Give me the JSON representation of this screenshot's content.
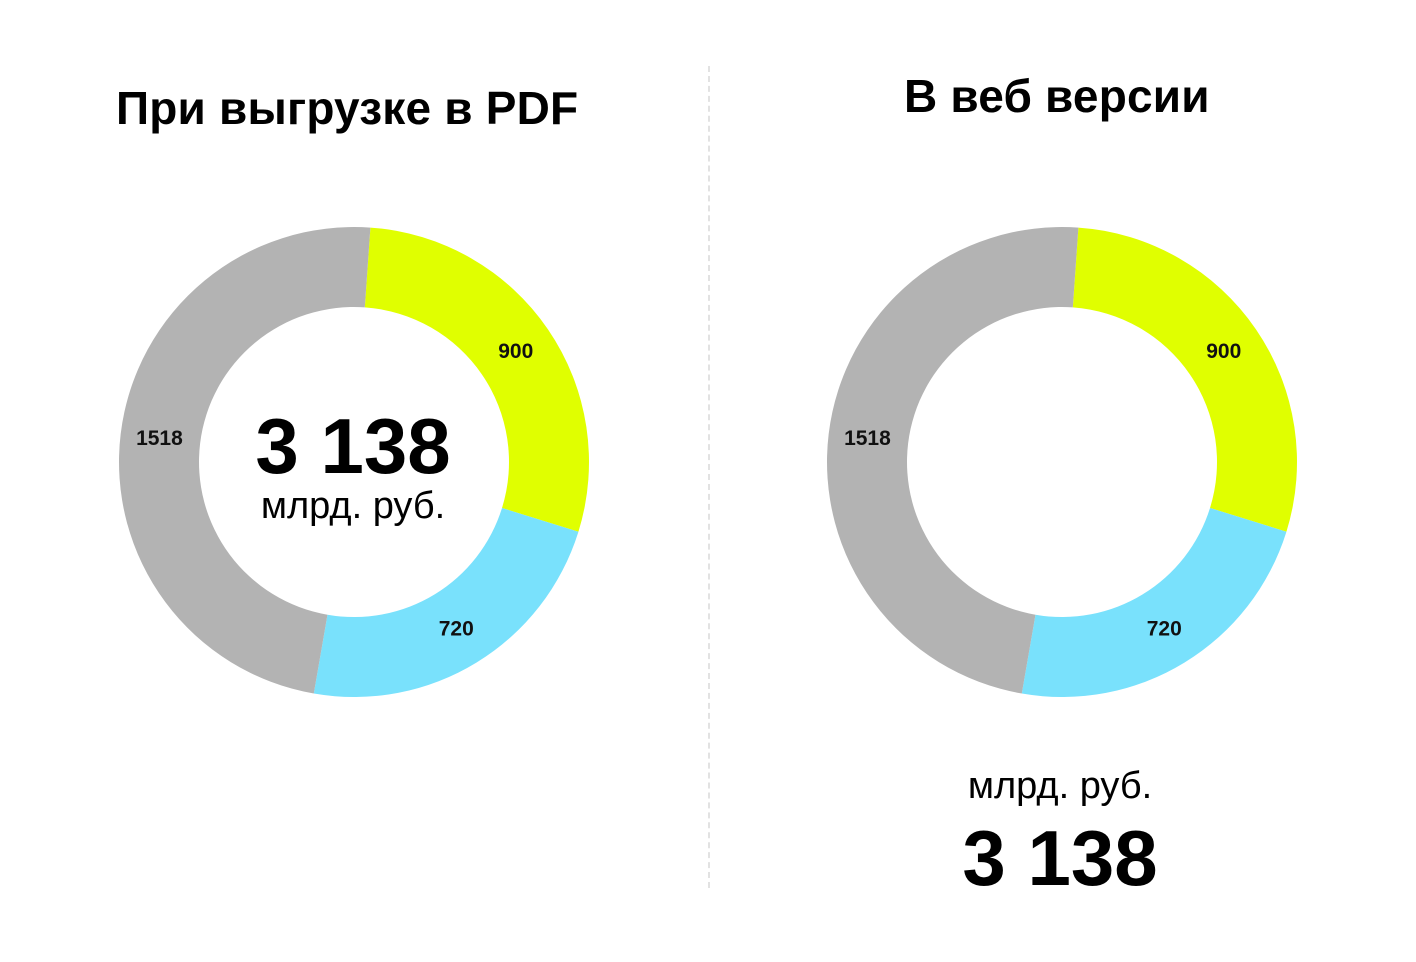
{
  "chart_data": [
    {
      "type": "pie",
      "variant": "donut",
      "title": "При выгрузке в PDF",
      "categories": [
        "900",
        "720",
        "1518"
      ],
      "values": [
        900,
        720,
        1518
      ],
      "colors": [
        "#E0FF00",
        "#79E1FC",
        "#B3B3B3"
      ],
      "total_label": "3 138",
      "unit_label": "млрд. руб.",
      "total_placement": "center"
    },
    {
      "type": "pie",
      "variant": "donut",
      "title": "В веб версии",
      "categories": [
        "900",
        "720",
        "1518"
      ],
      "values": [
        900,
        720,
        1518
      ],
      "colors": [
        "#E0FF00",
        "#79E1FC",
        "#B3B3B3"
      ],
      "total_label": "3 138",
      "unit_label": "млрд. руб.",
      "total_placement": "below"
    }
  ]
}
